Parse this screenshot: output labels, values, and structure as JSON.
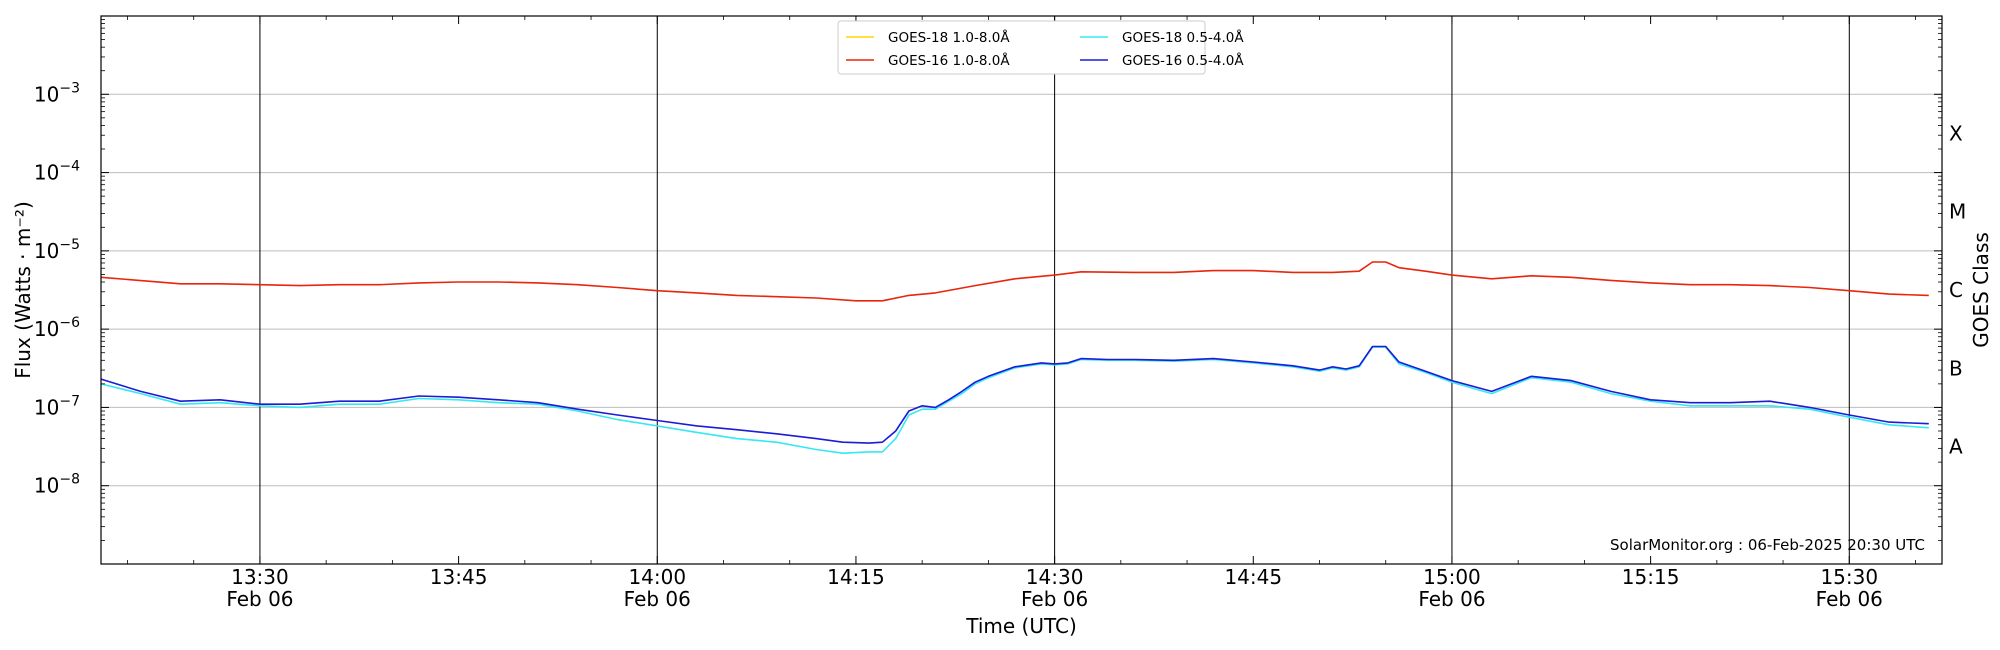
{
  "chart_data": {
    "type": "line",
    "xlabel": "Time (UTC)",
    "ylabel": "Flux (Watts · m⁻²)",
    "y2label": "GOES Class",
    "yscale": "log",
    "xlim": [
      "13:18",
      "15:37"
    ],
    "ylim": [
      1e-09,
      0.01
    ],
    "grid": "horizontal at decades",
    "legend_position": "top-center",
    "watermark": "SolarMonitor.org : 06-Feb-2025 20:30 UTC",
    "x_ticks": [
      {
        "time": "13:30",
        "line1": "13:30",
        "line2": "Feb 06",
        "major": true
      },
      {
        "time": "13:45",
        "line1": "13:45",
        "line2": "",
        "major": false
      },
      {
        "time": "14:00",
        "line1": "14:00",
        "line2": "Feb 06",
        "major": true
      },
      {
        "time": "14:15",
        "line1": "14:15",
        "line2": "",
        "major": false
      },
      {
        "time": "14:30",
        "line1": "14:30",
        "line2": "Feb 06",
        "major": true
      },
      {
        "time": "14:45",
        "line1": "14:45",
        "line2": "",
        "major": false
      },
      {
        "time": "15:00",
        "line1": "15:00",
        "line2": "Feb 06",
        "major": true
      },
      {
        "time": "15:15",
        "line1": "15:15",
        "line2": "",
        "major": false
      },
      {
        "time": "15:30",
        "line1": "15:30",
        "line2": "Feb 06",
        "major": true
      }
    ],
    "y_ticks": [
      {
        "value": 1e-08,
        "mant": "10",
        "exp": "−8"
      },
      {
        "value": 1e-07,
        "mant": "10",
        "exp": "−7"
      },
      {
        "value": 1e-06,
        "mant": "10",
        "exp": "−6"
      },
      {
        "value": 1e-05,
        "mant": "10",
        "exp": "−5"
      },
      {
        "value": 0.0001,
        "mant": "10",
        "exp": "−4"
      },
      {
        "value": 0.001,
        "mant": "10",
        "exp": "−3"
      }
    ],
    "goes_classes": [
      {
        "label": "A",
        "value": 3.16e-08
      },
      {
        "label": "B",
        "value": 3.16e-07
      },
      {
        "label": "C",
        "value": 3.16e-06
      },
      {
        "label": "M",
        "value": 3.16e-05
      },
      {
        "label": "X",
        "value": 0.000316
      }
    ],
    "series": [
      {
        "name": "GOES-18 1.0-8.0Å",
        "color": "#ffd700",
        "times": [],
        "values": []
      },
      {
        "name": "GOES-16 1.0-8.0Å",
        "color": "#e8260b",
        "times": [
          "13:18",
          "13:24",
          "13:27",
          "13:30",
          "13:33",
          "13:36",
          "13:39",
          "13:42",
          "13:45",
          "13:48",
          "13:51",
          "13:54",
          "13:57",
          "14:00",
          "14:03",
          "14:06",
          "14:09",
          "14:12",
          "14:15",
          "14:17",
          "14:19",
          "14:21",
          "14:24",
          "14:27",
          "14:30",
          "14:32",
          "14:36",
          "14:39",
          "14:42",
          "14:45",
          "14:48",
          "14:51",
          "14:53",
          "14:54",
          "14:55",
          "14:56",
          "14:58",
          "15:00",
          "15:03",
          "15:06",
          "15:09",
          "15:12",
          "15:15",
          "15:18",
          "15:21",
          "15:24",
          "15:27",
          "15:30",
          "15:33",
          "15:36"
        ],
        "values": [
          4.6e-06,
          3.8e-06,
          3.8e-06,
          3.7e-06,
          3.6e-06,
          3.7e-06,
          3.7e-06,
          3.9e-06,
          4e-06,
          4e-06,
          3.9e-06,
          3.7e-06,
          3.4e-06,
          3.1e-06,
          2.9e-06,
          2.7e-06,
          2.6e-06,
          2.5e-06,
          2.3e-06,
          2.3e-06,
          2.7e-06,
          2.9e-06,
          3.6e-06,
          4.4e-06,
          4.9e-06,
          5.4e-06,
          5.3e-06,
          5.3e-06,
          5.6e-06,
          5.6e-06,
          5.3e-06,
          5.3e-06,
          5.5e-06,
          7.2e-06,
          7.2e-06,
          6.1e-06,
          5.5e-06,
          4.9e-06,
          4.4e-06,
          4.8e-06,
          4.6e-06,
          4.2e-06,
          3.9e-06,
          3.7e-06,
          3.7e-06,
          3.6e-06,
          3.4e-06,
          3.1e-06,
          2.8e-06,
          2.7e-06
        ]
      },
      {
        "name": "GOES-18 0.5-4.0Å",
        "color": "#36e8f2",
        "times": [
          "13:18",
          "13:21",
          "13:24",
          "13:27",
          "13:30",
          "13:33",
          "13:36",
          "13:39",
          "13:42",
          "13:45",
          "13:48",
          "13:51",
          "13:54",
          "13:57",
          "14:00",
          "14:03",
          "14:06",
          "14:09",
          "14:12",
          "14:14",
          "14:16",
          "14:17",
          "14:18",
          "14:19",
          "14:20",
          "14:21",
          "14:22",
          "14:23",
          "14:24",
          "14:25",
          "14:27",
          "14:29",
          "14:30",
          "14:31",
          "14:32",
          "14:34",
          "14:36",
          "14:39",
          "14:42",
          "14:45",
          "14:48",
          "14:50",
          "14:51",
          "14:52",
          "14:53",
          "14:54",
          "14:55",
          "14:56",
          "14:58",
          "15:00",
          "15:03",
          "15:06",
          "15:09",
          "15:12",
          "15:15",
          "15:18",
          "15:21",
          "15:24",
          "15:27",
          "15:30",
          "15:33",
          "15:36"
        ],
        "values": [
          2e-07,
          1.5e-07,
          1.1e-07,
          1.15e-07,
          1.05e-07,
          1e-07,
          1.1e-07,
          1.1e-07,
          1.3e-07,
          1.25e-07,
          1.15e-07,
          1.1e-07,
          9e-08,
          7e-08,
          5.8e-08,
          4.8e-08,
          4e-08,
          3.6e-08,
          2.9e-08,
          2.6e-08,
          2.7e-08,
          2.7e-08,
          4e-08,
          8e-08,
          9.5e-08,
          9.5e-08,
          1.2e-07,
          1.5e-07,
          2e-07,
          2.4e-07,
          3.2e-07,
          3.6e-07,
          3.5e-07,
          3.6e-07,
          4.1e-07,
          4e-07,
          4e-07,
          3.9e-07,
          4.1e-07,
          3.7e-07,
          3.3e-07,
          2.9e-07,
          3.2e-07,
          3e-07,
          3.3e-07,
          5.9e-07,
          5.9e-07,
          3.6e-07,
          2.8e-07,
          2.1e-07,
          1.5e-07,
          2.4e-07,
          2.1e-07,
          1.5e-07,
          1.2e-07,
          1.05e-07,
          1.05e-07,
          1.05e-07,
          9.5e-08,
          7.5e-08,
          6e-08,
          5.5e-08
        ]
      },
      {
        "name": "GOES-16 0.5-4.0Å",
        "color": "#1b1bd8",
        "times": [
          "13:18",
          "13:21",
          "13:24",
          "13:27",
          "13:30",
          "13:33",
          "13:36",
          "13:39",
          "13:42",
          "13:45",
          "13:48",
          "13:51",
          "13:54",
          "13:57",
          "14:00",
          "14:03",
          "14:06",
          "14:09",
          "14:12",
          "14:14",
          "14:16",
          "14:17",
          "14:18",
          "14:19",
          "14:20",
          "14:21",
          "14:22",
          "14:23",
          "14:24",
          "14:25",
          "14:27",
          "14:29",
          "14:30",
          "14:31",
          "14:32",
          "14:34",
          "14:36",
          "14:39",
          "14:42",
          "14:45",
          "14:48",
          "14:50",
          "14:51",
          "14:52",
          "14:53",
          "14:54",
          "14:55",
          "14:56",
          "14:58",
          "15:00",
          "15:03",
          "15:06",
          "15:09",
          "15:12",
          "15:15",
          "15:18",
          "15:21",
          "15:24",
          "15:27",
          "15:30",
          "15:33",
          "15:36"
        ],
        "values": [
          2.3e-07,
          1.6e-07,
          1.2e-07,
          1.25e-07,
          1.1e-07,
          1.1e-07,
          1.2e-07,
          1.2e-07,
          1.4e-07,
          1.35e-07,
          1.25e-07,
          1.15e-07,
          9.5e-08,
          8e-08,
          6.8e-08,
          5.8e-08,
          5.2e-08,
          4.6e-08,
          4e-08,
          3.6e-08,
          3.5e-08,
          3.6e-08,
          5e-08,
          9e-08,
          1.05e-07,
          1e-07,
          1.25e-07,
          1.6e-07,
          2.1e-07,
          2.5e-07,
          3.3e-07,
          3.7e-07,
          3.6e-07,
          3.7e-07,
          4.2e-07,
          4.1e-07,
          4.1e-07,
          4e-07,
          4.2e-07,
          3.8e-07,
          3.4e-07,
          3e-07,
          3.3e-07,
          3.1e-07,
          3.4e-07,
          6e-07,
          6e-07,
          3.8e-07,
          2.9e-07,
          2.2e-07,
          1.6e-07,
          2.5e-07,
          2.2e-07,
          1.6e-07,
          1.25e-07,
          1.15e-07,
          1.15e-07,
          1.2e-07,
          1e-07,
          8e-08,
          6.5e-08,
          6.2e-08
        ]
      }
    ]
  }
}
